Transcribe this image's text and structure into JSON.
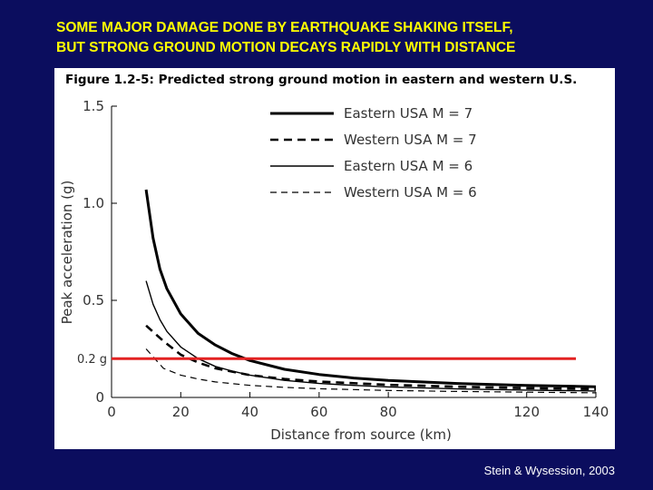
{
  "slide": {
    "title_line1": "SOME MAJOR DAMAGE DONE BY EARTHQUAKE SHAKING ITSELF,",
    "title_line2": "BUT STRONG GROUND MOTION DECAYS RAPIDLY WITH DISTANCE",
    "credit": "Stein & Wysession, 2003",
    "colors": {
      "background": "#0b0d5e",
      "title": "#ffff00",
      "threshold_line": "#e32222"
    }
  },
  "chart_data": {
    "type": "line",
    "title": "Figure 1.2-5: Predicted strong ground motion in eastern and western U.S.",
    "xlabel": "Distance from source (km)",
    "ylabel": "Peak acceleration (g)",
    "xlim": [
      0,
      140
    ],
    "ylim": [
      0,
      1.5
    ],
    "xticks": [
      "0",
      "20",
      "40",
      "60",
      "80",
      "120",
      "140"
    ],
    "yticks": [
      "0",
      "0.5",
      "1.0",
      "1.5"
    ],
    "grid": false,
    "legend_position": "top-right",
    "series": [
      {
        "name": "Eastern USA M = 7",
        "style": "solid-thick",
        "x": [
          10,
          12,
          14,
          16,
          20,
          25,
          30,
          35,
          40,
          50,
          60,
          70,
          80,
          100,
          120,
          140
        ],
        "y": [
          1.07,
          0.82,
          0.66,
          0.56,
          0.43,
          0.33,
          0.27,
          0.225,
          0.19,
          0.145,
          0.118,
          0.1,
          0.088,
          0.072,
          0.062,
          0.055
        ]
      },
      {
        "name": "Western USA M = 7",
        "style": "dashed-thick",
        "x": [
          10,
          15,
          20,
          25,
          30,
          40,
          50,
          60,
          80,
          100,
          120,
          140
        ],
        "y": [
          0.37,
          0.29,
          0.22,
          0.18,
          0.15,
          0.115,
          0.095,
          0.082,
          0.065,
          0.055,
          0.048,
          0.043
        ]
      },
      {
        "name": "Eastern USA M = 6",
        "style": "solid-thin",
        "x": [
          10,
          12,
          14,
          16,
          20,
          25,
          30,
          35,
          40,
          50,
          60,
          70,
          80,
          100,
          120,
          140
        ],
        "y": [
          0.6,
          0.48,
          0.4,
          0.34,
          0.26,
          0.2,
          0.16,
          0.135,
          0.115,
          0.088,
          0.072,
          0.062,
          0.054,
          0.044,
          0.038,
          0.033
        ]
      },
      {
        "name": "Western USA M = 6",
        "style": "dashed-thin",
        "x": [
          10,
          15,
          20,
          25,
          30,
          40,
          50,
          60,
          80,
          100,
          120,
          140
        ],
        "y": [
          0.25,
          0.15,
          0.115,
          0.095,
          0.08,
          0.062,
          0.052,
          0.045,
          0.036,
          0.031,
          0.027,
          0.024
        ]
      }
    ],
    "annotations": [
      {
        "text": "0.2 g",
        "y": 0.2
      }
    ]
  }
}
